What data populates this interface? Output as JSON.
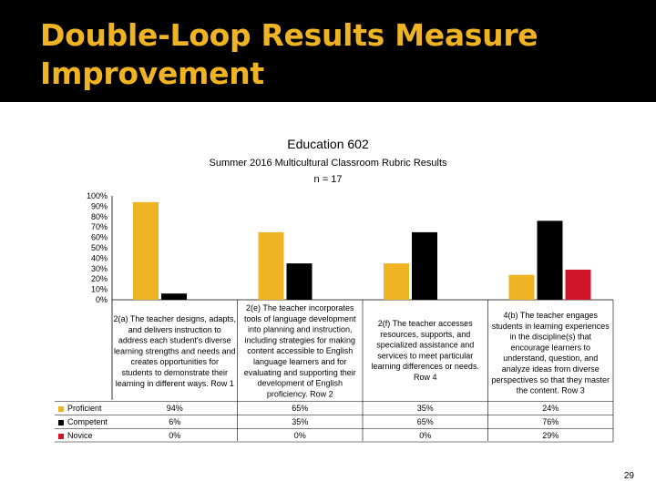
{
  "slide": {
    "title": "Double-Loop Results Measure Improvement",
    "page_number": "29"
  },
  "chart_data": {
    "type": "bar",
    "title": "Education 602",
    "subtitle": "Summer 2016 Multicultural Classroom Rubric Results",
    "n_label": "n = 17",
    "categories": [
      "2(a) The teacher designs, adapts, and delivers instruction to address each student's diverse learning strengths and needs and creates opportunities for students to demonstrate their learning in different ways. Row 1",
      "2(e) The teacher incorporates tools of language development into planning and instruction, including strategies for making content accessible to English language learners and for evaluating and supporting their development of English proficiency. Row 2",
      "2(f) The teacher accesses resources, supports, and specialized assistance and services to meet particular learning differences or needs. Row 4",
      "4(b) The teacher engages students in learning experiences in the discipline(s) that encourage learners to understand, question, and analyze ideas from diverse perspectives so that they master the content. Row 3"
    ],
    "category_lines": [
      [
        "2(a) The teacher designs, adapts,",
        "and delivers instruction to",
        "address each student's diverse",
        "learning strengths and needs and",
        "creates opportunities for",
        "students to demonstrate their",
        "learning in different ways. Row 1"
      ],
      [
        "2(e) The teacher incorporates",
        "tools of language development",
        "into planning and instruction,",
        "including strategies for making",
        "content accessible to English",
        "language learners and for",
        "evaluating and supporting their",
        "development of English",
        "proficiency. Row 2"
      ],
      [
        "2(f) The teacher accesses",
        "resources, supports, and",
        "specialized assistance and",
        "services to meet particular",
        "learning differences or needs.",
        "Row 4"
      ],
      [
        "4(b) The teacher engages",
        "students in learning experiences",
        "in the discipline(s) that",
        "encourage learners to",
        "understand, question, and",
        "analyze ideas from diverse",
        "perspectives so that they master",
        "the content. Row 3"
      ]
    ],
    "series": [
      {
        "name": "Proficient",
        "color": "#f0b323",
        "values": [
          94,
          65,
          35,
          24
        ],
        "labels": [
          "94%",
          "65%",
          "35%",
          "24%"
        ]
      },
      {
        "name": "Competent",
        "color": "#000000",
        "values": [
          6,
          35,
          65,
          76
        ],
        "labels": [
          "6%",
          "35%",
          "65%",
          "76%"
        ]
      },
      {
        "name": "Novice",
        "color": "#d0142c",
        "values": [
          0,
          0,
          0,
          29
        ],
        "labels": [
          "0%",
          "0%",
          "0%",
          "29%"
        ]
      }
    ],
    "y_ticks": [
      "0%",
      "10%",
      "20%",
      "30%",
      "40%",
      "50%",
      "60%",
      "70%",
      "80%",
      "90%",
      "100%"
    ],
    "ylim": [
      0,
      100
    ],
    "grid": false,
    "legend_position": "bottom-left data table"
  }
}
